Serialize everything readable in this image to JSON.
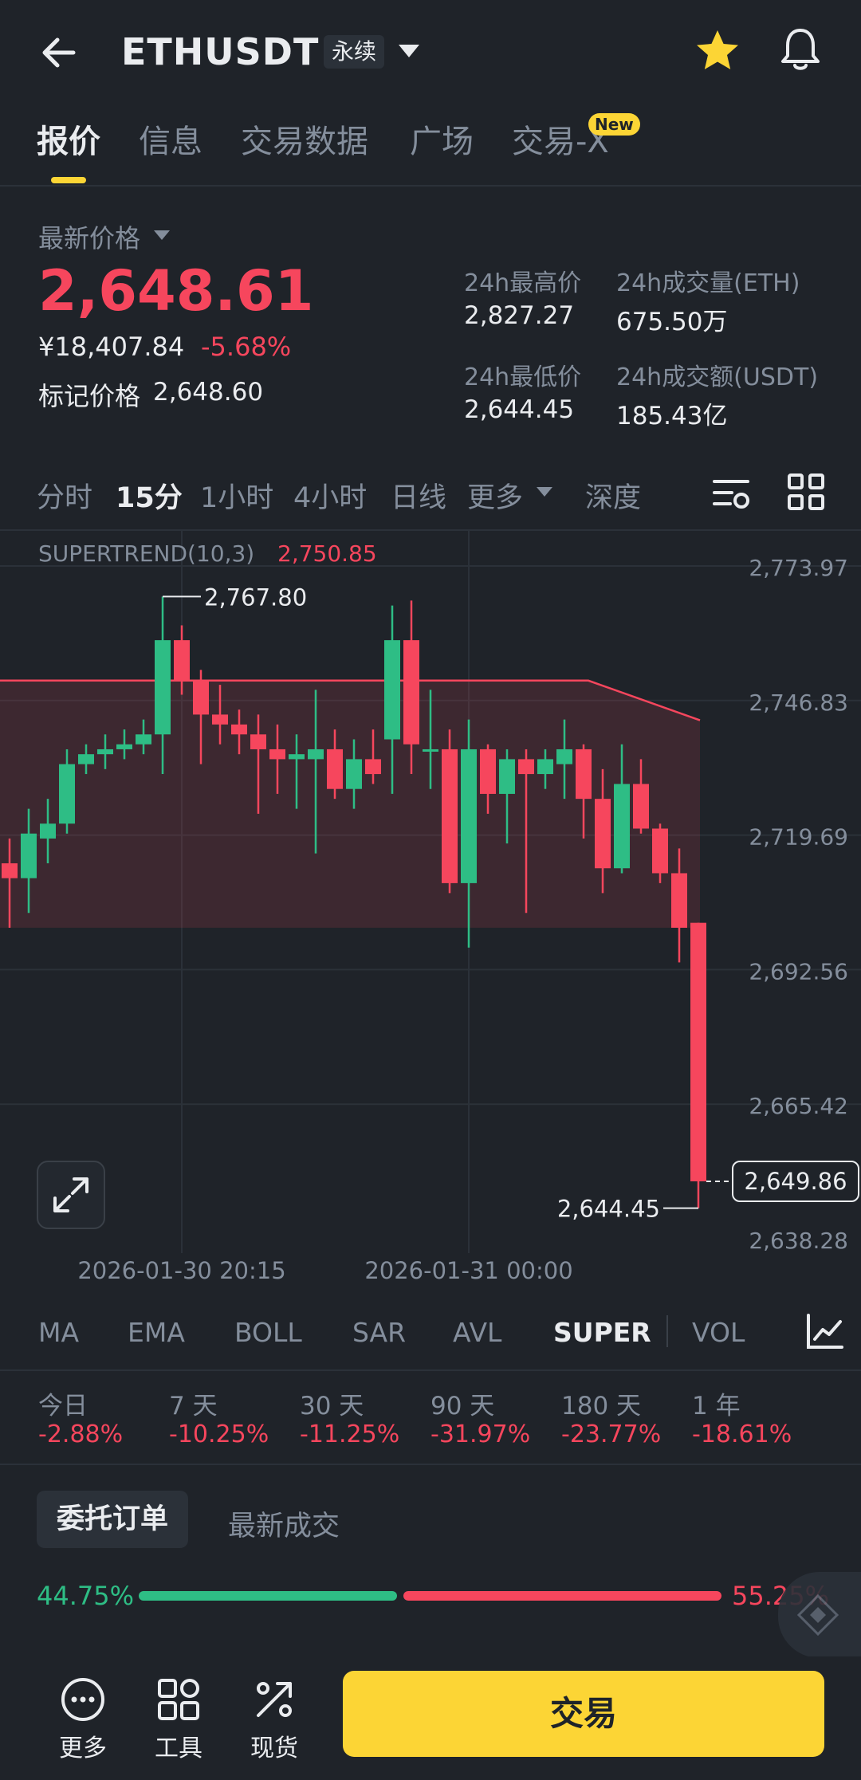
{
  "header": {
    "symbol": "ETHUSDT",
    "contract_type": "永续"
  },
  "tabs": [
    {
      "label": "报价",
      "active": true
    },
    {
      "label": "信息"
    },
    {
      "label": "交易数据"
    },
    {
      "label": "广场"
    },
    {
      "label": "交易-X",
      "badge": "New"
    }
  ],
  "price": {
    "label": "最新价格",
    "last": "2,648.61",
    "cny": "¥18,407.84",
    "change_pct": "-5.68%",
    "mark_label": "标记价格",
    "mark_value": "2,648.60"
  },
  "stats": [
    {
      "label": "24h最高价",
      "value": "2,827.27"
    },
    {
      "label": "24h成交量(ETH)",
      "value": "675.50万"
    },
    {
      "label": "24h最低价",
      "value": "2,644.45"
    },
    {
      "label": "24h成交额(USDT)",
      "value": "185.43亿"
    }
  ],
  "intervals": [
    {
      "label": "分时"
    },
    {
      "label": "15分",
      "active": true
    },
    {
      "label": "1小时"
    },
    {
      "label": "4小时"
    },
    {
      "label": "日线"
    },
    {
      "label": "更多"
    },
    {
      "label": "深度"
    }
  ],
  "chart": {
    "indicator_label": "SUPERTREND(10,3)",
    "indicator_value": "2,750.85",
    "y_ticks": [
      "2,773.97",
      "2,746.83",
      "2,719.69",
      "2,692.56",
      "2,665.42",
      "2,638.28"
    ],
    "x_ticks": [
      "2026-01-30 20:15",
      "2026-01-31 00:00"
    ],
    "high_label": "2,767.80",
    "low_label": "2,644.45",
    "current_price_tag": "2,649.86"
  },
  "chart_data": {
    "type": "candlestick",
    "y_range": [
      2638.28,
      2773.97
    ],
    "supertrend": 2750.85,
    "candles": [
      {
        "o": 2714,
        "h": 2719,
        "l": 2701,
        "c": 2711
      },
      {
        "o": 2711,
        "h": 2725,
        "l": 2704,
        "c": 2720
      },
      {
        "o": 2719,
        "h": 2727,
        "l": 2714,
        "c": 2722
      },
      {
        "o": 2722,
        "h": 2737,
        "l": 2720,
        "c": 2734
      },
      {
        "o": 2734,
        "h": 2738,
        "l": 2732,
        "c": 2736
      },
      {
        "o": 2736,
        "h": 2740,
        "l": 2733,
        "c": 2737
      },
      {
        "o": 2737,
        "h": 2741,
        "l": 2735,
        "c": 2738
      },
      {
        "o": 2738,
        "h": 2743,
        "l": 2736,
        "c": 2740
      },
      {
        "o": 2740,
        "h": 2767.8,
        "l": 2732,
        "c": 2759
      },
      {
        "o": 2759,
        "h": 2762,
        "l": 2748,
        "c": 2751
      },
      {
        "o": 2751,
        "h": 2753,
        "l": 2734,
        "c": 2744
      },
      {
        "o": 2744,
        "h": 2750,
        "l": 2738,
        "c": 2742
      },
      {
        "o": 2742,
        "h": 2745,
        "l": 2736,
        "c": 2740
      },
      {
        "o": 2740,
        "h": 2744,
        "l": 2724,
        "c": 2737
      },
      {
        "o": 2737,
        "h": 2742,
        "l": 2728,
        "c": 2735
      },
      {
        "o": 2735,
        "h": 2740,
        "l": 2725,
        "c": 2736
      },
      {
        "o": 2735,
        "h": 2749,
        "l": 2716,
        "c": 2737
      },
      {
        "o": 2737,
        "h": 2741,
        "l": 2727,
        "c": 2729
      },
      {
        "o": 2729,
        "h": 2739,
        "l": 2725,
        "c": 2735
      },
      {
        "o": 2735,
        "h": 2741,
        "l": 2730,
        "c": 2732
      },
      {
        "o": 2739,
        "h": 2766,
        "l": 2728,
        "c": 2759
      },
      {
        "o": 2759,
        "h": 2767,
        "l": 2732,
        "c": 2738
      },
      {
        "o": 2737,
        "h": 2749,
        "l": 2729,
        "c": 2737
      },
      {
        "o": 2737,
        "h": 2741,
        "l": 2708,
        "c": 2710
      },
      {
        "o": 2710,
        "h": 2743,
        "l": 2697,
        "c": 2737
      },
      {
        "o": 2737,
        "h": 2738,
        "l": 2724,
        "c": 2728
      },
      {
        "o": 2728,
        "h": 2737,
        "l": 2718,
        "c": 2735
      },
      {
        "o": 2735,
        "h": 2737,
        "l": 2704,
        "c": 2732
      },
      {
        "o": 2732,
        "h": 2737,
        "l": 2729,
        "c": 2735
      },
      {
        "o": 2734,
        "h": 2743,
        "l": 2727,
        "c": 2737
      },
      {
        "o": 2737,
        "h": 2738,
        "l": 2719,
        "c": 2727
      },
      {
        "o": 2727,
        "h": 2733,
        "l": 2708,
        "c": 2713
      },
      {
        "o": 2713,
        "h": 2738,
        "l": 2712,
        "c": 2730
      },
      {
        "o": 2730,
        "h": 2735,
        "l": 2720,
        "c": 2721
      },
      {
        "o": 2721,
        "h": 2722,
        "l": 2710,
        "c": 2712
      },
      {
        "o": 2712,
        "h": 2717,
        "l": 2694,
        "c": 2701
      },
      {
        "o": 2702,
        "h": 2702,
        "l": 2644.45,
        "c": 2649.86
      }
    ]
  },
  "indicators": [
    {
      "label": "MA"
    },
    {
      "label": "EMA"
    },
    {
      "label": "BOLL"
    },
    {
      "label": "SAR"
    },
    {
      "label": "AVL"
    },
    {
      "label": "SUPER",
      "active": true
    },
    {
      "label": "VOL"
    }
  ],
  "performance": [
    {
      "period": "今日",
      "value": "-2.88%"
    },
    {
      "period": "7 天",
      "value": "-10.25%"
    },
    {
      "period": "30 天",
      "value": "-11.25%"
    },
    {
      "period": "90 天",
      "value": "-31.97%"
    },
    {
      "period": "180 天",
      "value": "-23.77%"
    },
    {
      "period": "1 年",
      "value": "-18.61%"
    }
  ],
  "orderbook": {
    "tabs": [
      "委托订单",
      "最新成交"
    ],
    "bid_pct": "44.75%",
    "ask_pct": "55.25%",
    "bid_ratio": 0.4475
  },
  "bottom_nav": {
    "items": [
      {
        "label": "更多"
      },
      {
        "label": "工具"
      },
      {
        "label": "现货"
      }
    ],
    "trade_label": "交易"
  },
  "colors": {
    "up": "#2ebd85",
    "down": "#f6465d",
    "accent": "#fcd535",
    "bg": "#1f2329"
  }
}
